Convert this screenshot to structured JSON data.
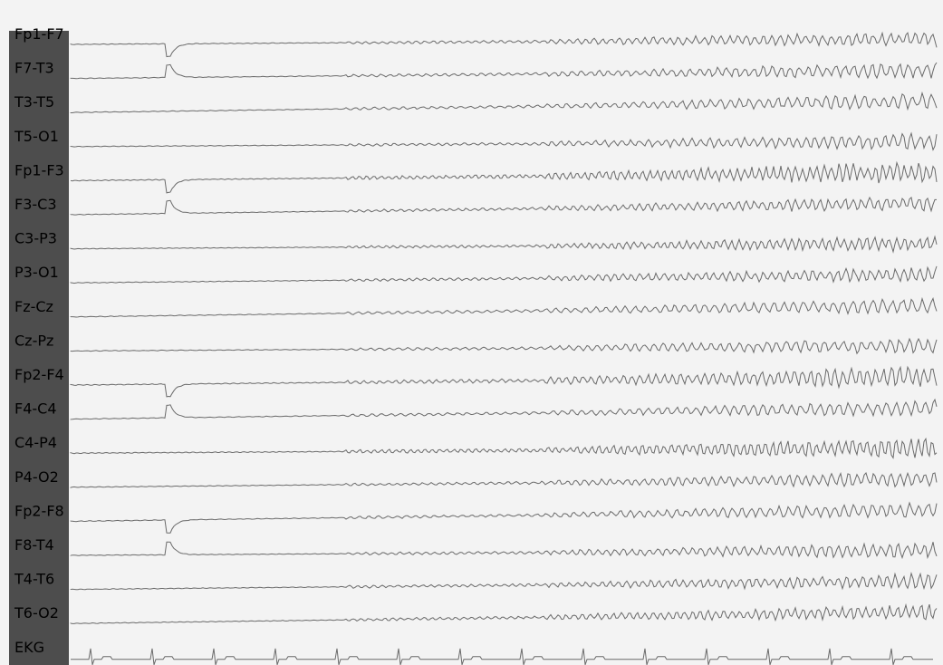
{
  "channels": [
    "Fp1-F7",
    "F7-T3",
    "T3-T5",
    "T5-O1",
    "Fp1-F3",
    "F3-C3",
    "C3-P3",
    "P3-O1",
    "Fz-Cz",
    "Cz-Pz",
    "Fp2-F4",
    "F4-C4",
    "C4-P4",
    "P4-O2",
    "Fp2-F8",
    "F8-T4",
    "T4-T6",
    "T6-O2",
    "EKG"
  ]
}
